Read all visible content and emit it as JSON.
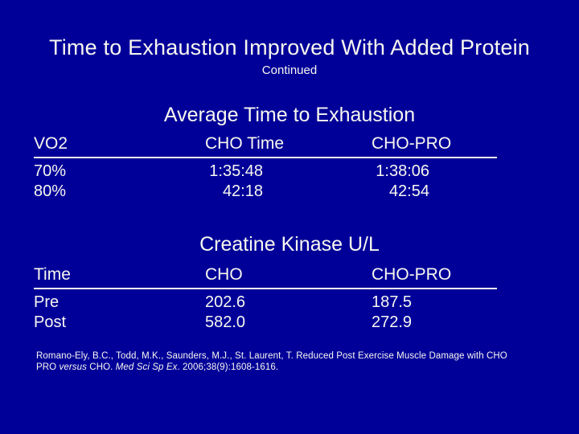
{
  "colors": {
    "background": "#000099",
    "text": "#F8F7EF"
  },
  "title": "Time to Exhaustion Improved With Added Protein",
  "subtitle": "Continued",
  "tables": [
    {
      "heading": "Average Time to Exhaustion",
      "columns": [
        "VO2",
        "CHO Time",
        "CHO-PRO"
      ],
      "rows": [
        [
          "70%",
          "1:35:48",
          "1:38:06"
        ],
        [
          "80%",
          "42:18",
          "42:54"
        ]
      ]
    },
    {
      "heading": "Creatine Kinase U/L",
      "columns": [
        "Time",
        "CHO",
        "CHO-PRO"
      ],
      "rows": [
        [
          "Pre",
          "202.6",
          "187.5"
        ],
        [
          "Post",
          "582.0",
          "272.9"
        ]
      ]
    }
  ],
  "citation": {
    "line1": "Romano-Ely, B.C., Todd, M.K., Saunders, M.J., St. Laurent, T. Reduced Post Exercise Muscle Damage with CHO",
    "line2_pre": "PRO ",
    "versus_italic": "versus",
    "line2_mid": " CHO. ",
    "journal_italic": "Med Sci Sp Ex",
    "line2_end": ". 2006;38(9):1608-1616."
  }
}
